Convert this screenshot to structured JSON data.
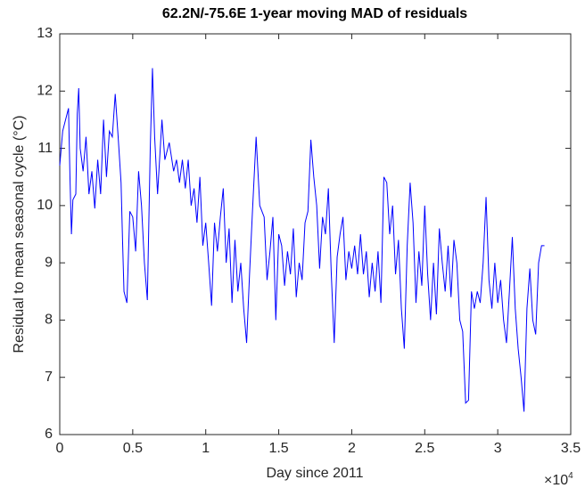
{
  "chart_data": {
    "type": "line",
    "title": "62.2N/-75.6E 1-year moving MAD of residuals",
    "x_label": "Day since 2011",
    "y_label": "Residual to mean seasonal cycle (°C)",
    "x_multiplier": {
      "base": "×10",
      "exponent": "4"
    },
    "xlim": [
      0,
      3.5
    ],
    "xticks": [
      0,
      0.5,
      1,
      1.5,
      2,
      2.5,
      3,
      3.5
    ],
    "ylim": [
      6,
      13
    ],
    "yticks": [
      6,
      7,
      8,
      9,
      10,
      11,
      12,
      13
    ],
    "color": "#0000ff",
    "x": [
      0,
      0.02,
      0.04,
      0.06,
      0.07,
      0.08,
      0.09,
      0.11,
      0.12,
      0.13,
      0.14,
      0.16,
      0.18,
      0.2,
      0.22,
      0.24,
      0.26,
      0.28,
      0.3,
      0.32,
      0.34,
      0.36,
      0.38,
      0.4,
      0.42,
      0.43,
      0.44,
      0.46,
      0.48,
      0.5,
      0.52,
      0.54,
      0.56,
      0.58,
      0.6,
      0.62,
      0.635,
      0.65,
      0.67,
      0.7,
      0.72,
      0.75,
      0.78,
      0.8,
      0.82,
      0.84,
      0.86,
      0.88,
      0.9,
      0.92,
      0.94,
      0.96,
      0.98,
      1.0,
      1.02,
      1.04,
      1.06,
      1.08,
      1.1,
      1.12,
      1.14,
      1.16,
      1.18,
      1.2,
      1.22,
      1.24,
      1.26,
      1.28,
      1.3,
      1.32,
      1.345,
      1.37,
      1.4,
      1.42,
      1.44,
      1.46,
      1.48,
      1.5,
      1.52,
      1.54,
      1.56,
      1.58,
      1.6,
      1.62,
      1.64,
      1.66,
      1.68,
      1.7,
      1.72,
      1.74,
      1.76,
      1.78,
      1.8,
      1.82,
      1.84,
      1.86,
      1.88,
      1.9,
      1.92,
      1.94,
      1.96,
      1.98,
      2.0,
      2.02,
      2.04,
      2.06,
      2.08,
      2.1,
      2.12,
      2.14,
      2.16,
      2.18,
      2.2,
      2.22,
      2.24,
      2.26,
      2.28,
      2.3,
      2.32,
      2.34,
      2.36,
      2.38,
      2.4,
      2.42,
      2.44,
      2.46,
      2.48,
      2.5,
      2.52,
      2.54,
      2.56,
      2.58,
      2.6,
      2.62,
      2.64,
      2.66,
      2.68,
      2.7,
      2.72,
      2.74,
      2.76,
      2.78,
      2.8,
      2.82,
      2.84,
      2.86,
      2.88,
      2.9,
      2.92,
      2.94,
      2.96,
      2.98,
      3.0,
      3.02,
      3.04,
      3.06,
      3.08,
      3.1,
      3.12,
      3.14,
      3.16,
      3.18,
      3.2,
      3.22,
      3.24,
      3.26,
      3.28,
      3.3,
      3.32
    ],
    "values": [
      10.7,
      11.3,
      11.5,
      11.7,
      10.5,
      9.5,
      10.1,
      10.2,
      11.6,
      12.05,
      11.0,
      10.6,
      11.2,
      10.2,
      10.6,
      9.95,
      10.8,
      10.2,
      11.5,
      10.5,
      11.3,
      11.2,
      11.95,
      11.2,
      10.4,
      9.4,
      8.5,
      8.3,
      9.9,
      9.8,
      9.2,
      10.6,
      10.0,
      9.0,
      8.35,
      11.0,
      12.4,
      11.2,
      10.2,
      11.5,
      10.8,
      11.1,
      10.6,
      10.8,
      10.4,
      10.8,
      10.3,
      10.8,
      10.0,
      10.3,
      9.7,
      10.5,
      9.3,
      9.7,
      9.0,
      8.25,
      9.7,
      9.2,
      9.8,
      10.3,
      9.0,
      9.6,
      8.3,
      9.4,
      8.5,
      9.0,
      8.2,
      7.6,
      8.8,
      9.9,
      11.2,
      10.0,
      9.8,
      8.7,
      9.2,
      9.8,
      8.0,
      9.5,
      9.3,
      8.6,
      9.2,
      8.8,
      9.6,
      8.4,
      9.0,
      8.7,
      9.7,
      9.9,
      11.15,
      10.5,
      10.0,
      8.9,
      9.8,
      9.5,
      10.3,
      8.8,
      7.6,
      9.1,
      9.5,
      9.8,
      8.7,
      9.2,
      8.9,
      9.3,
      8.8,
      9.5,
      8.8,
      9.2,
      8.4,
      9.0,
      8.5,
      9.2,
      8.3,
      10.5,
      10.4,
      9.5,
      10.0,
      8.8,
      9.4,
      8.2,
      7.5,
      9.3,
      10.4,
      9.7,
      8.3,
      9.2,
      8.6,
      10.0,
      8.8,
      8.0,
      9.0,
      8.1,
      9.6,
      9.0,
      8.5,
      9.3,
      8.4,
      9.4,
      9.0,
      8.0,
      7.8,
      6.55,
      6.6,
      8.5,
      8.2,
      8.5,
      8.3,
      9.0,
      10.15,
      8.7,
      8.2,
      9.0,
      8.3,
      8.7,
      8.0,
      7.6,
      8.5,
      9.45,
      8.2,
      7.5,
      7.0,
      6.4,
      8.2,
      8.9,
      8.0,
      7.75,
      9.0,
      9.3,
      9.3
    ]
  }
}
